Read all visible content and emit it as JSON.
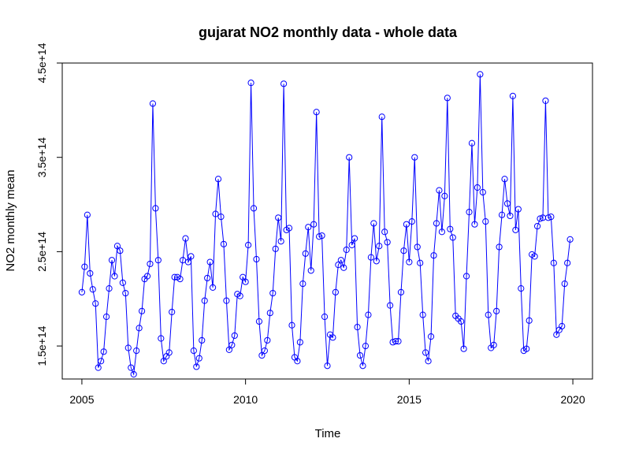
{
  "chart_data": {
    "type": "line",
    "title": "gujarat NO2 monthly data - whole data",
    "xlabel": "Time",
    "ylabel": "NO2 monthly mean",
    "xlim": [
      2004.4,
      2020.6
    ],
    "ylim": [
      115000000000000.0,
      450000000000000.0
    ],
    "x_ticks": [
      2005,
      2010,
      2015,
      2020
    ],
    "x_tick_labels": [
      "2005",
      "2010",
      "2015",
      "2020"
    ],
    "y_ticks": [
      150000000000000.0,
      250000000000000.0,
      350000000000000.0,
      450000000000000.0
    ],
    "y_tick_labels": [
      "1.5e+14",
      "2.5e+14",
      "3.5e+14",
      "4.5e+14"
    ],
    "series_color": "#0000ff",
    "x_start": 2005,
    "x_step": 0.08333333,
    "series": [
      {
        "values": [
          207000000000000.0,
          234000000000000.0,
          289000000000000.0,
          227000000000000.0,
          210000000000000.0,
          195000000000000.0,
          127000000000000.0,
          134000000000000.0,
          144000000000000.0,
          181000000000000.0,
          211000000000000.0,
          241000000000000.0,
          224000000000000.0,
          256000000000000.0,
          251000000000000.0,
          217000000000000.0,
          206000000000000.0,
          148000000000000.0,
          127000000000000.0,
          120000000000000.0,
          145000000000000.0,
          169000000000000.0,
          187000000000000.0,
          221000000000000.0,
          224000000000000.0,
          237000000000000.0,
          407000000000000.0,
          296000000000000.0,
          241000000000000.0,
          158000000000000.0,
          134000000000000.0,
          139000000000000.0,
          143000000000000.0,
          186000000000000.0,
          223000000000000.0,
          223000000000000.0,
          221000000000000.0,
          241000000000000.0,
          264000000000000.0,
          239000000000000.0,
          245000000000000.0,
          145000000000000.0,
          128000000000000.0,
          137000000000000.0,
          156000000000000.0,
          198000000000000.0,
          222000000000000.0,
          239000000000000.0,
          212000000000000.0,
          290000000000000.0,
          327000000000000.0,
          287000000000000.0,
          258000000000000.0,
          198000000000000.0,
          146000000000000.0,
          151000000000000.0,
          161000000000000.0,
          205000000000000.0,
          203000000000000.0,
          223000000000000.0,
          218000000000000.0,
          257000000000000.0,
          429000000000000.0,
          296000000000000.0,
          242000000000000.0,
          176000000000000.0,
          140000000000000.0,
          145000000000000.0,
          156000000000000.0,
          185000000000000.0,
          206000000000000.0,
          253000000000000.0,
          286000000000000.0,
          261000000000000.0,
          428000000000000.0,
          273000000000000.0,
          275000000000000.0,
          172000000000000.0,
          138000000000000.0,
          134000000000000.0,
          154000000000000.0,
          216000000000000.0,
          248000000000000.0,
          276000000000000.0,
          230000000000000.0,
          279000000000000.0,
          398000000000000.0,
          266000000000000.0,
          267000000000000.0,
          181000000000000.0,
          129000000000000.0,
          162000000000000.0,
          159000000000000.0,
          207000000000000.0,
          236000000000000.0,
          241000000000000.0,
          233000000000000.0,
          252000000000000.0,
          350000000000000.0,
          257000000000000.0,
          264000000000000.0,
          170000000000000.0,
          140000000000000.0,
          129000000000000.0,
          150000000000000.0,
          183000000000000.0,
          244000000000000.0,
          280000000000000.0,
          240000000000000.0,
          256000000000000.0,
          393000000000000.0,
          271000000000000.0,
          260000000000000.0,
          193000000000000.0,
          154000000000000.0,
          155000000000000.0,
          155000000000000.0,
          207000000000000.0,
          251000000000000.0,
          279000000000000.0,
          239000000000000.0,
          282000000000000.0,
          350000000000000.0,
          255000000000000.0,
          238000000000000.0,
          183000000000000.0,
          143000000000000.0,
          134000000000000.0,
          160000000000000.0,
          246000000000000.0,
          280000000000000.0,
          315000000000000.0,
          271000000000000.0,
          309000000000000.0,
          413000000000000.0,
          274000000000000.0,
          265000000000000.0,
          182000000000000.0,
          179000000000000.0,
          176000000000000.0,
          147000000000000.0,
          224000000000000.0,
          292000000000000.0,
          365000000000000.0,
          279000000000000.0,
          318000000000000.0,
          438000000000000.0,
          313000000000000.0,
          282000000000000.0,
          183000000000000.0,
          148000000000000.0,
          151000000000000.0,
          187000000000000.0,
          255000000000000.0,
          289000000000000.0,
          327000000000000.0,
          301000000000000.0,
          288000000000000.0,
          415000000000000.0,
          273000000000000.0,
          295000000000000.0,
          211000000000000.0,
          145000000000000.0,
          147000000000000.0,
          177000000000000.0,
          247000000000000.0,
          245000000000000.0,
          277000000000000.0,
          285000000000000.0,
          286000000000000.0,
          410000000000000.0,
          286000000000000.0,
          287000000000000.0,
          238000000000000.0,
          162000000000000.0,
          167000000000000.0,
          171000000000000.0,
          216000000000000.0,
          238000000000000.0,
          263000000000000.0
        ]
      }
    ]
  }
}
